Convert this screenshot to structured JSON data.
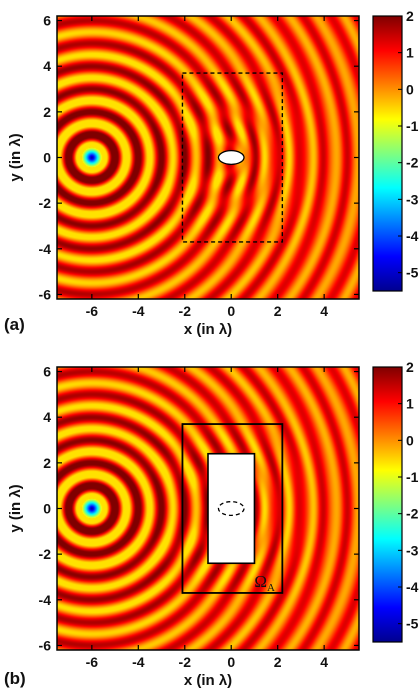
{
  "chart_data": [
    {
      "type": "heatmap",
      "panel_label": "(a)",
      "xlabel": "x (in λ)",
      "ylabel": "y (in λ)",
      "xlim": [
        -7.5,
        5.5
      ],
      "ylim": [
        -6.2,
        6.2
      ],
      "xticks": [
        -6,
        -4,
        -2,
        0,
        2,
        4
      ],
      "yticks": [
        -6,
        -4,
        -2,
        0,
        2,
        4,
        6
      ],
      "colorbar": {
        "min": -5.5,
        "max": 2,
        "ticks": [
          2,
          1,
          0,
          -1,
          -2,
          -3,
          -4,
          -5
        ]
      },
      "source": {
        "x": -6,
        "y": 0
      },
      "scatterer": {
        "shape": "ellipse",
        "cx": 0,
        "cy": 0,
        "rx": 0.55,
        "ry": 0.3,
        "fill": "#ffffff"
      },
      "region": {
        "x": [
          -2.1,
          2.2
        ],
        "y": [
          -3.7,
          3.7
        ],
        "style": "dashed"
      },
      "region_label": "",
      "cloak": null
    },
    {
      "type": "heatmap",
      "panel_label": "(b)",
      "xlabel": "x (in λ)",
      "ylabel": "y (in λ)",
      "xlim": [
        -7.5,
        5.5
      ],
      "ylim": [
        -6.2,
        6.2
      ],
      "xticks": [
        -6,
        -4,
        -2,
        0,
        2,
        4
      ],
      "yticks": [
        -6,
        -4,
        -2,
        0,
        2,
        4,
        6
      ],
      "colorbar": {
        "min": -5.5,
        "max": 2,
        "ticks": [
          2,
          1,
          0,
          -1,
          -2,
          -3,
          -4,
          -5
        ]
      },
      "source": {
        "x": -6,
        "y": 0
      },
      "scatterer": {
        "shape": "ellipse",
        "cx": 0,
        "cy": 0,
        "rx": 0.55,
        "ry": 0.3,
        "style": "dashed"
      },
      "region": {
        "x": [
          -2.1,
          2.2
        ],
        "y": [
          -3.7,
          3.7
        ],
        "style": "solid"
      },
      "region_label": "Ω",
      "region_label_sub": "A",
      "cloak": {
        "x": [
          -1.0,
          1.0
        ],
        "y": [
          -2.4,
          2.4
        ]
      }
    }
  ],
  "colors": {
    "colormap": [
      "#00008f",
      "#0000ff",
      "#007fff",
      "#00ffff",
      "#7fff7f",
      "#ffff00",
      "#ff7f00",
      "#ff0000",
      "#7f0000"
    ]
  }
}
